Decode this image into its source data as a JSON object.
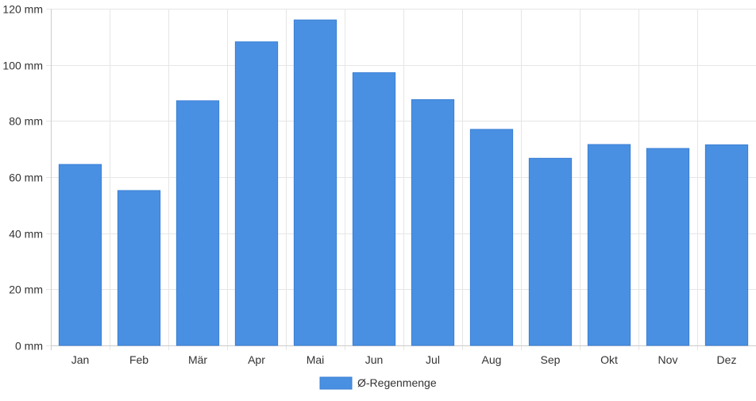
{
  "chart_data": {
    "type": "bar",
    "categories": [
      "Jan",
      "Feb",
      "Mär",
      "Apr",
      "Mai",
      "Jun",
      "Jul",
      "Aug",
      "Sep",
      "Okt",
      "Nov",
      "Dez"
    ],
    "series": [
      {
        "name": "Ø-Regenmenge",
        "values": [
          64.5,
          55.2,
          87.2,
          108.2,
          116,
          97.2,
          87.6,
          77,
          66.7,
          71.6,
          70.2,
          71.5
        ],
        "color": "#4a90e2"
      }
    ],
    "y_unit": "mm",
    "ylim": [
      0,
      120
    ],
    "y_ticks": [
      0,
      20,
      40,
      60,
      80,
      100,
      120
    ],
    "y_tick_labels": [
      "0 mm",
      "20 mm",
      "40 mm",
      "60 mm",
      "80 mm",
      "100 mm",
      "120 mm"
    ],
    "grid": true,
    "legend_position": "bottom-center"
  },
  "colors": {
    "bar": "#4a90e2",
    "bar_border": "#3b7fd4",
    "grid": "#e6e6e6",
    "axis": "#cccccc",
    "text": "#333333"
  }
}
